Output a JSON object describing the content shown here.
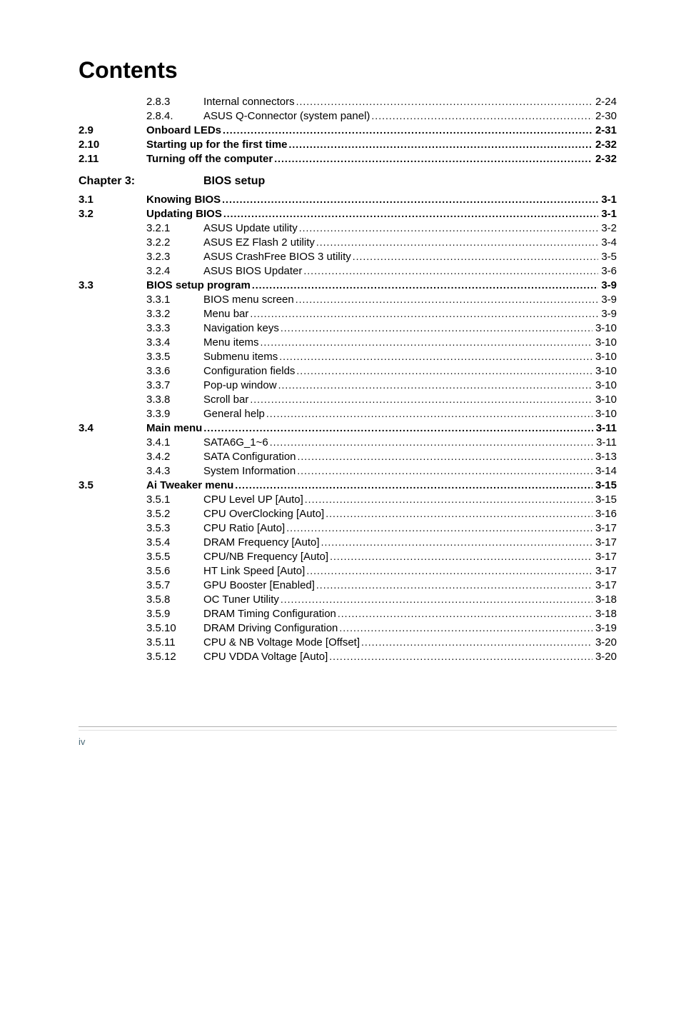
{
  "title": "Contents",
  "footer": "iv",
  "chapter": {
    "label": "Chapter 3:",
    "title": "BIOS setup"
  },
  "rows": [
    {
      "c1": "",
      "c2": "2.8.3",
      "label": "Internal connectors",
      "page": "2-24",
      "bold": false,
      "indent": 1
    },
    {
      "c1": "",
      "c2": "2.8.4.",
      "label": "ASUS Q-Connector (system panel)",
      "page": "2-30",
      "bold": false,
      "indent": 1
    },
    {
      "c1": "2.9",
      "c2": "",
      "label": "Onboard LEDs",
      "page": "2-31",
      "bold": true,
      "indent": 0
    },
    {
      "c1": "2.10",
      "c2": "",
      "label": "Starting up for the first time",
      "page": "2-32",
      "bold": true,
      "indent": 0
    },
    {
      "c1": "2.11",
      "c2": "",
      "label": "Turning off the computer",
      "page": "2-32",
      "bold": true,
      "indent": 0
    },
    {
      "type": "chapter"
    },
    {
      "c1": "3.1",
      "c2": "",
      "label": "Knowing BIOS",
      "page": "3-1",
      "bold": true,
      "indent": 0
    },
    {
      "c1": "3.2",
      "c2": "",
      "label": "Updating BIOS",
      "page": "3-1",
      "bold": true,
      "indent": 0
    },
    {
      "c1": "",
      "c2": "3.2.1",
      "label": "ASUS Update utility",
      "page": "3-2",
      "bold": false,
      "indent": 1
    },
    {
      "c1": "",
      "c2": "3.2.2",
      "label": "ASUS EZ Flash 2 utility",
      "page": "3-4",
      "bold": false,
      "indent": 1
    },
    {
      "c1": "",
      "c2": "3.2.3",
      "label": "ASUS CrashFree BIOS 3 utility",
      "page": "3-5",
      "bold": false,
      "indent": 1
    },
    {
      "c1": "",
      "c2": "3.2.4",
      "label": "ASUS BIOS Updater",
      "page": "3-6",
      "bold": false,
      "indent": 1
    },
    {
      "c1": "3.3",
      "c2": "",
      "label": "BIOS setup program",
      "page": "3-9",
      "bold": true,
      "indent": 0
    },
    {
      "c1": "",
      "c2": "3.3.1",
      "label": "BIOS menu screen",
      "page": "3-9",
      "bold": false,
      "indent": 1
    },
    {
      "c1": "",
      "c2": "3.3.2",
      "label": "Menu bar",
      "page": "3-9",
      "bold": false,
      "indent": 1
    },
    {
      "c1": "",
      "c2": "3.3.3",
      "label": "Navigation keys",
      "page": "3-10",
      "bold": false,
      "indent": 1
    },
    {
      "c1": "",
      "c2": "3.3.4",
      "label": "Menu items",
      "page": "3-10",
      "bold": false,
      "indent": 1
    },
    {
      "c1": "",
      "c2": "3.3.5",
      "label": "Submenu items",
      "page": "3-10",
      "bold": false,
      "indent": 1
    },
    {
      "c1": "",
      "c2": "3.3.6",
      "label": "Configuration fields",
      "page": "3-10",
      "bold": false,
      "indent": 1
    },
    {
      "c1": "",
      "c2": "3.3.7",
      "label": "Pop-up window",
      "page": "3-10",
      "bold": false,
      "indent": 1
    },
    {
      "c1": "",
      "c2": "3.3.8",
      "label": "Scroll bar",
      "page": "3-10",
      "bold": false,
      "indent": 1
    },
    {
      "c1": "",
      "c2": "3.3.9",
      "label": "General help",
      "page": "3-10",
      "bold": false,
      "indent": 1
    },
    {
      "c1": "3.4",
      "c2": "",
      "label": "Main menu",
      "page": "3-11",
      "bold": true,
      "indent": 0
    },
    {
      "c1": "",
      "c2": "3.4.1",
      "label": "SATA6G_1~6",
      "page": "3-11",
      "bold": false,
      "indent": 1
    },
    {
      "c1": "",
      "c2": "3.4.2",
      "label": "SATA Configuration",
      "page": "3-13",
      "bold": false,
      "indent": 1
    },
    {
      "c1": "",
      "c2": "3.4.3",
      "label": "System Information",
      "page": "3-14",
      "bold": false,
      "indent": 1
    },
    {
      "c1": "3.5",
      "c2": "",
      "label": "Ai Tweaker menu",
      "page": "3-15",
      "bold": true,
      "indent": 0
    },
    {
      "c1": "",
      "c2": "3.5.1",
      "label": "CPU Level UP [Auto]",
      "page": "3-15",
      "bold": false,
      "indent": 1
    },
    {
      "c1": "",
      "c2": "3.5.2",
      "label": "CPU OverClocking [Auto]",
      "page": "3-16",
      "bold": false,
      "indent": 1
    },
    {
      "c1": "",
      "c2": "3.5.3",
      "label": "CPU Ratio [Auto]",
      "page": "3-17",
      "bold": false,
      "indent": 1
    },
    {
      "c1": "",
      "c2": "3.5.4",
      "label": "DRAM Frequency [Auto]",
      "page": "3-17",
      "bold": false,
      "indent": 1
    },
    {
      "c1": "",
      "c2": "3.5.5",
      "label": "CPU/NB Frequency [Auto]",
      "page": "3-17",
      "bold": false,
      "indent": 1
    },
    {
      "c1": "",
      "c2": "3.5.6",
      "label": "HT Link Speed [Auto]",
      "page": "3-17",
      "bold": false,
      "indent": 1
    },
    {
      "c1": "",
      "c2": "3.5.7",
      "label": "GPU Booster [Enabled]",
      "page": "3-17",
      "bold": false,
      "indent": 1
    },
    {
      "c1": "",
      "c2": "3.5.8",
      "label": "OC Tuner Utility",
      "page": "3-18",
      "bold": false,
      "indent": 1
    },
    {
      "c1": "",
      "c2": "3.5.9",
      "label": "DRAM Timing Configuration",
      "page": "3-18",
      "bold": false,
      "indent": 1
    },
    {
      "c1": "",
      "c2": "3.5.10",
      "label": "DRAM Driving Configuration",
      "page": "3-19",
      "bold": false,
      "indent": 1
    },
    {
      "c1": "",
      "c2": "3.5.11",
      "label": "CPU & NB Voltage Mode [Offset]",
      "page": "3-20",
      "bold": false,
      "indent": 1
    },
    {
      "c1": "",
      "c2": "3.5.12",
      "label": "CPU VDDA Voltage [Auto]",
      "page": "3-20",
      "bold": false,
      "indent": 1
    }
  ]
}
